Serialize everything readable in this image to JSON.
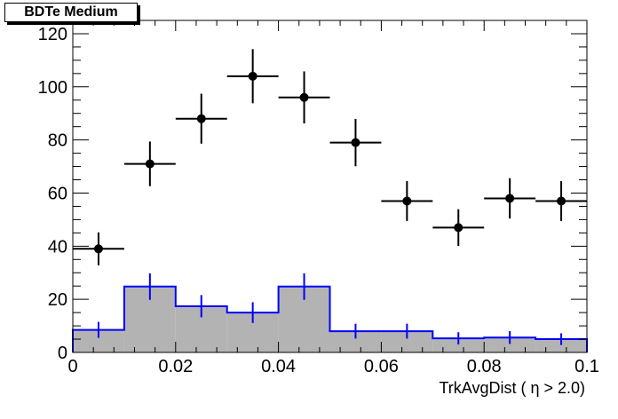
{
  "chart_data": {
    "type": "bar",
    "title": "BDTe Medium",
    "xlabel": "TrkAvgDist ( η > 2.0)",
    "ylabel": "",
    "xlim": [
      0,
      0.1
    ],
    "ylim": [
      0,
      125
    ],
    "x_ticks": [
      "0",
      "0.02",
      "0.04",
      "0.06",
      "0.08",
      "0.1"
    ],
    "y_ticks": [
      "0",
      "20",
      "40",
      "60",
      "80",
      "100",
      "120"
    ],
    "bin_edges": [
      0,
      0.01,
      0.02,
      0.03,
      0.04,
      0.05,
      0.06,
      0.07,
      0.08,
      0.09,
      0.1
    ],
    "series": [
      {
        "kind": "histogram",
        "color": "#0000ff",
        "fill": "#b3b3b3",
        "values": [
          8.5,
          24.8,
          17.4,
          15.0,
          24.8,
          8.0,
          8.0,
          5.3,
          5.6,
          5.0
        ],
        "errors": [
          3.0,
          5.0,
          4.2,
          3.9,
          5.0,
          2.8,
          2.8,
          2.3,
          2.4,
          2.2
        ]
      },
      {
        "kind": "points",
        "color": "#000000",
        "x": [
          0.005,
          0.015,
          0.025,
          0.035,
          0.045,
          0.055,
          0.065,
          0.075,
          0.085,
          0.095
        ],
        "values": [
          39,
          71,
          88,
          104,
          96,
          79,
          57,
          47,
          58,
          57
        ],
        "errors": [
          6.2,
          8.4,
          9.4,
          10.2,
          9.8,
          8.9,
          7.5,
          6.9,
          7.6,
          7.5
        ]
      }
    ],
    "grid": false,
    "legend": "none"
  }
}
